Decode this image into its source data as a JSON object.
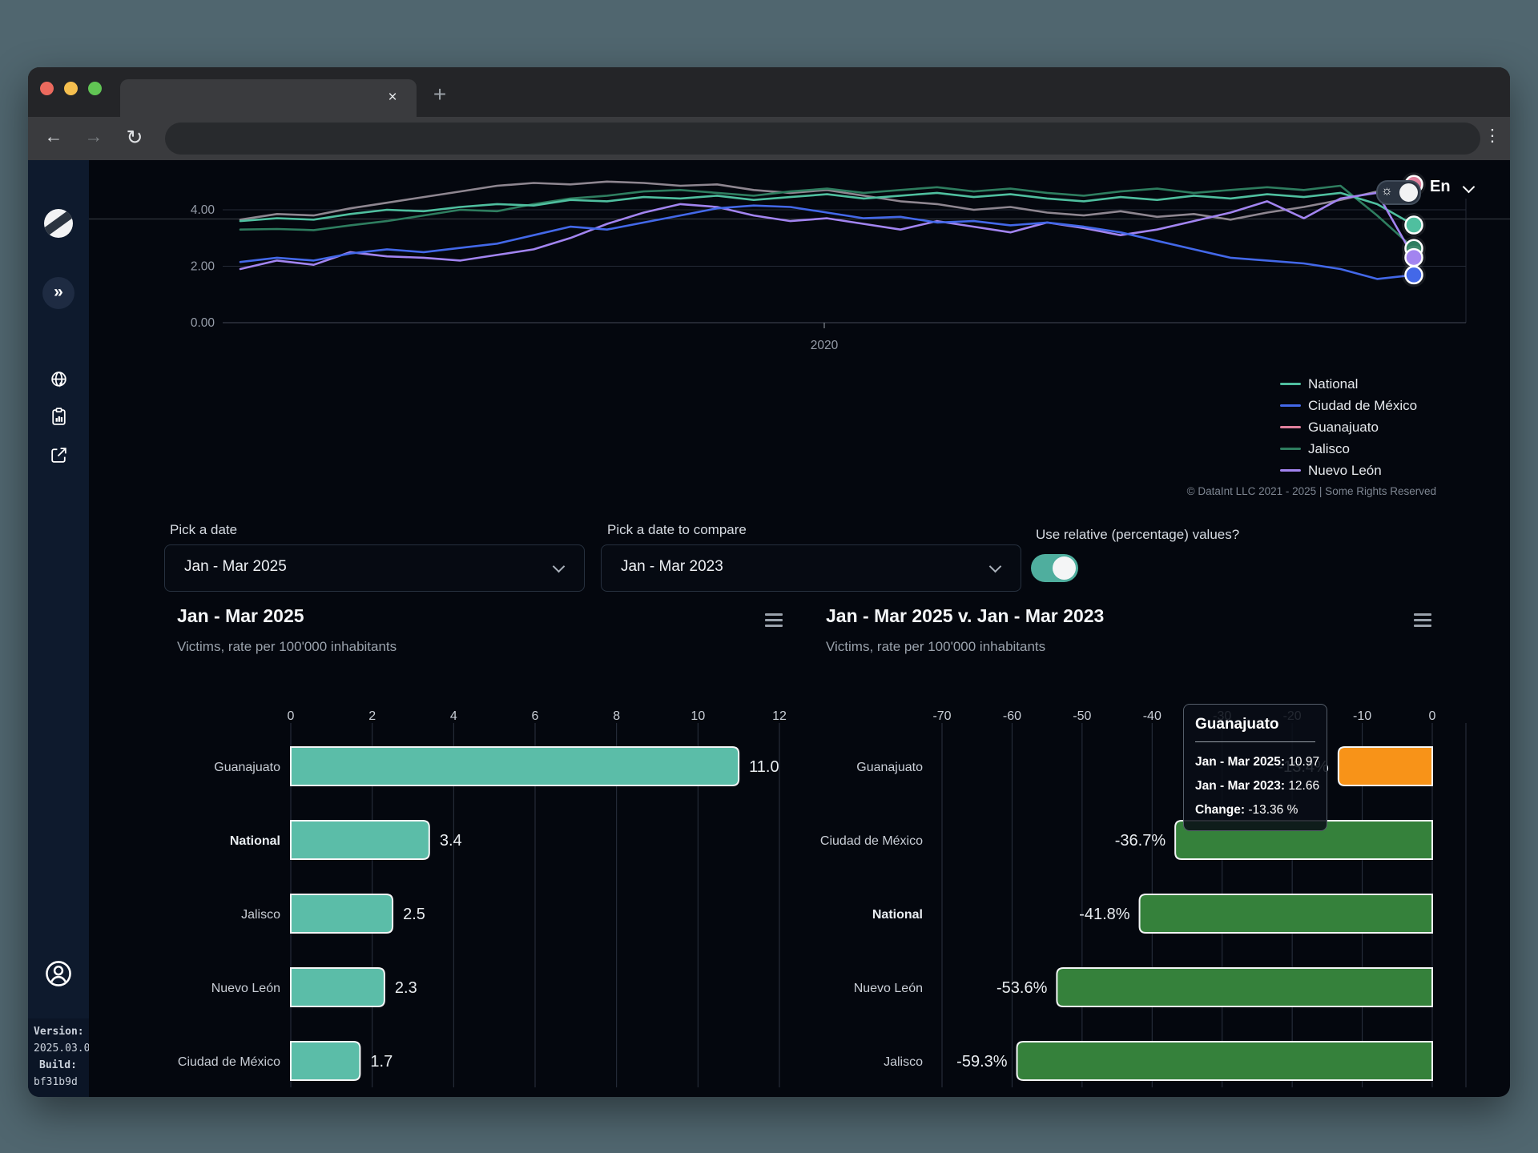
{
  "browser": {
    "tab_close_icon": "×",
    "new_tab_icon": "+",
    "back_icon": "←",
    "forward_icon": "→",
    "reload_icon": "↻",
    "menu_icon": "⋮"
  },
  "header": {
    "language": "En",
    "sun_icon": "☼"
  },
  "sidebar": {
    "expand_icon": "»",
    "version_label": "Version:",
    "version_value": "2025.03.0",
    "build_label": "Build:",
    "build_value": "bf31b9d"
  },
  "controls": {
    "pick_date_label": "Pick a date",
    "pick_date_value": "Jan - Mar 2025",
    "compare_label": "Pick a date to compare",
    "compare_value": "Jan - Mar 2023",
    "relative_label": "Use relative (percentage) values?",
    "toggle_on_color": "#4FAE9E"
  },
  "panels": {
    "left": {
      "title": "Jan - Mar 2025",
      "subtitle": "Victims, rate per 100'000 inhabitants"
    },
    "right": {
      "title": "Jan - Mar 2025 v. Jan - Mar 2023",
      "subtitle": "Victims, rate per 100'000 inhabitants"
    }
  },
  "tooltip": {
    "title": "Guanajuato",
    "rows": [
      {
        "label": "Jan - Mar 2025:",
        "value": "10.97"
      },
      {
        "label": "Jan - Mar 2023:",
        "value": "12.66"
      },
      {
        "label": "Change:",
        "value": "-13.36 %"
      }
    ]
  },
  "footer_note": "© DataInt LLC 2021 - 2025 | Some Rights Reserved",
  "chart_data": [
    {
      "type": "line",
      "ylabel": "",
      "yticks": [
        {
          "v": 0,
          "label": "0.00"
        },
        {
          "v": 2,
          "label": "2.00"
        },
        {
          "v": 4,
          "label": "4.00"
        }
      ],
      "xtick_label": "2020",
      "ylim": [
        0,
        5.6
      ],
      "grid": true,
      "legend_position": "bottom-right",
      "series": [
        {
          "name": "National",
          "color": "#4FBF9F",
          "values": [
            3.6,
            3.7,
            3.65,
            3.85,
            4.0,
            3.95,
            4.1,
            4.2,
            4.15,
            4.35,
            4.3,
            4.45,
            4.4,
            4.5,
            4.35,
            4.45,
            4.55,
            4.4,
            4.5,
            4.6,
            4.45,
            4.55,
            4.4,
            4.3,
            4.45,
            4.35,
            4.5,
            4.4,
            4.55,
            4.45,
            4.6,
            4.2,
            3.46
          ]
        },
        {
          "name": "Ciudad de México",
          "color": "#4368E8",
          "values": [
            2.15,
            2.3,
            2.2,
            2.45,
            2.6,
            2.5,
            2.65,
            2.8,
            3.1,
            3.4,
            3.3,
            3.55,
            3.8,
            4.05,
            4.15,
            4.1,
            3.9,
            3.7,
            3.75,
            3.55,
            3.6,
            3.45,
            3.55,
            3.4,
            3.2,
            2.9,
            2.6,
            2.3,
            2.2,
            2.1,
            1.9,
            1.55,
            1.69
          ]
        },
        {
          "name": "Guanajuato",
          "color": "#E0809D",
          "line_color": "#8E8690",
          "values": [
            3.65,
            3.85,
            3.8,
            4.05,
            4.25,
            4.45,
            4.65,
            4.85,
            4.95,
            4.9,
            5.0,
            4.95,
            4.85,
            4.9,
            4.7,
            4.6,
            4.7,
            4.5,
            4.3,
            4.2,
            4.0,
            4.1,
            3.9,
            3.8,
            3.95,
            3.75,
            3.85,
            3.65,
            3.9,
            4.1,
            4.35,
            4.65,
            4.9
          ]
        },
        {
          "name": "Jalisco",
          "color": "#2E7D5F",
          "values": [
            3.3,
            3.32,
            3.28,
            3.45,
            3.6,
            3.8,
            4.0,
            3.95,
            4.2,
            4.4,
            4.5,
            4.65,
            4.7,
            4.6,
            4.5,
            4.65,
            4.75,
            4.6,
            4.7,
            4.8,
            4.65,
            4.75,
            4.6,
            4.5,
            4.65,
            4.75,
            4.6,
            4.7,
            4.8,
            4.7,
            4.85,
            3.8,
            2.63
          ]
        },
        {
          "name": "Nuevo León",
          "color": "#A284F0",
          "values": [
            1.9,
            2.2,
            2.05,
            2.5,
            2.35,
            2.3,
            2.2,
            2.4,
            2.6,
            3.0,
            3.5,
            3.9,
            4.2,
            4.1,
            3.8,
            3.6,
            3.7,
            3.5,
            3.3,
            3.6,
            3.4,
            3.2,
            3.55,
            3.35,
            3.1,
            3.3,
            3.6,
            3.9,
            4.3,
            3.7,
            4.4,
            4.6,
            2.31
          ]
        }
      ]
    },
    {
      "type": "bar",
      "orientation": "horizontal",
      "title": "Jan - Mar 2025",
      "subtitle": "Victims, rate per 100'000 inhabitants",
      "categories": [
        "Guanajuato",
        "National",
        "Jalisco",
        "Nuevo León",
        "Ciudad de México"
      ],
      "values": [
        11.0,
        3.4,
        2.5,
        2.3,
        1.7
      ],
      "value_labels": [
        "11.0",
        "3.4",
        "2.5",
        "2.3",
        "1.7"
      ],
      "bold_category": "National",
      "xlim": [
        0,
        12
      ],
      "xticks": [
        0,
        2,
        4,
        6,
        8,
        10,
        12
      ],
      "bar_colors": [
        "#5BBDA8",
        "#5BBDA8",
        "#5BBDA8",
        "#5BBDA8",
        "#5BBDA8"
      ],
      "grid": true
    },
    {
      "type": "bar",
      "orientation": "horizontal",
      "title": "Jan - Mar 2025 v. Jan - Mar 2023",
      "subtitle": "Victims, rate per 100'000 inhabitants",
      "categories": [
        "Guanajuato",
        "Ciudad de México",
        "National",
        "Nuevo León",
        "Jalisco"
      ],
      "values": [
        -13.4,
        -36.7,
        -41.8,
        -53.6,
        -59.3
      ],
      "value_labels": [
        "-13.4%",
        "-36.7%",
        "-41.8%",
        "-53.6%",
        "-59.3%"
      ],
      "bold_category": "National",
      "xlim": [
        -70,
        0
      ],
      "xticks": [
        -70,
        -60,
        -50,
        -40,
        -30,
        -20,
        -10,
        0
      ],
      "bar_colors": [
        "#F89318",
        "#35813B",
        "#35813B",
        "#35813B",
        "#35813B"
      ],
      "grid": true
    }
  ]
}
